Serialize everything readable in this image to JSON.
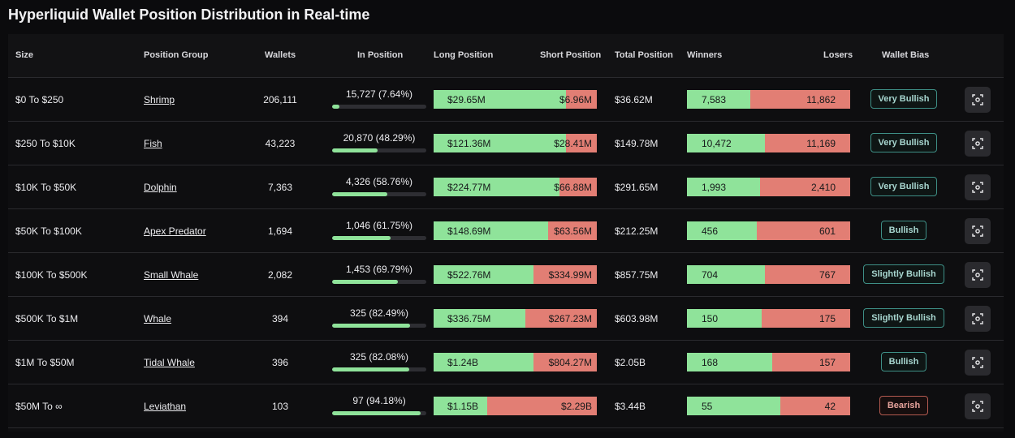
{
  "page": {
    "title": "Hyperliquid Wallet Position Distribution in Real-time"
  },
  "columns": {
    "size": "Size",
    "group": "Position Group",
    "wallets": "Wallets",
    "in_position": "In Position",
    "long": "Long Position",
    "short": "Short Position",
    "total": "Total Position",
    "winners": "Winners",
    "losers": "Losers",
    "bias": "Wallet Bias"
  },
  "colors": {
    "long": "#8fe39a",
    "short": "#e27e74",
    "accent": "#3e8f86",
    "bear": "#b45a50"
  },
  "rows": [
    {
      "size": "$0 To $250",
      "group": "Shrimp",
      "wallets": "206,111",
      "in_position": "15,727 (7.64%)",
      "in_pct": 7.64,
      "long": "$29.65M",
      "short": "$6.96M",
      "long_frac": 0.81,
      "total": "$36.62M",
      "winners": "7,583",
      "losers": "11,862",
      "win_frac": 0.39,
      "bias": "Very Bullish",
      "bias_kind": "bull",
      "action_icon": "scan-icon"
    },
    {
      "size": "$250 To $10K",
      "group": "Fish",
      "wallets": "43,223",
      "in_position": "20,870 (48.29%)",
      "in_pct": 48.29,
      "long": "$121.36M",
      "short": "$28.41M",
      "long_frac": 0.81,
      "total": "$149.78M",
      "winners": "10,472",
      "losers": "11,169",
      "win_frac": 0.48,
      "bias": "Very Bullish",
      "bias_kind": "bull",
      "action_icon": "scan-icon"
    },
    {
      "size": "$10K To $50K",
      "group": "Dolphin",
      "wallets": "7,363",
      "in_position": "4,326 (58.76%)",
      "in_pct": 58.76,
      "long": "$224.77M",
      "short": "$66.88M",
      "long_frac": 0.77,
      "total": "$291.65M",
      "winners": "1,993",
      "losers": "2,410",
      "win_frac": 0.45,
      "bias": "Very Bullish",
      "bias_kind": "bull",
      "action_icon": "scan-icon"
    },
    {
      "size": "$50K To $100K",
      "group": "Apex Predator",
      "wallets": "1,694",
      "in_position": "1,046 (61.75%)",
      "in_pct": 61.75,
      "long": "$148.69M",
      "short": "$63.56M",
      "long_frac": 0.7,
      "total": "$212.25M",
      "winners": "456",
      "losers": "601",
      "win_frac": 0.43,
      "bias": "Bullish",
      "bias_kind": "bull",
      "action_icon": "scan-icon"
    },
    {
      "size": "$100K To $500K",
      "group": "Small Whale",
      "wallets": "2,082",
      "in_position": "1,453 (69.79%)",
      "in_pct": 69.79,
      "long": "$522.76M",
      "short": "$334.99M",
      "long_frac": 0.61,
      "total": "$857.75M",
      "winners": "704",
      "losers": "767",
      "win_frac": 0.48,
      "bias": "Slightly Bullish",
      "bias_kind": "bull",
      "action_icon": "scan-icon"
    },
    {
      "size": "$500K To $1M",
      "group": "Whale",
      "wallets": "394",
      "in_position": "325 (82.49%)",
      "in_pct": 82.49,
      "long": "$336.75M",
      "short": "$267.23M",
      "long_frac": 0.56,
      "total": "$603.98M",
      "winners": "150",
      "losers": "175",
      "win_frac": 0.46,
      "bias": "Slightly Bullish",
      "bias_kind": "bull",
      "action_icon": "scan-icon"
    },
    {
      "size": "$1M To $50M",
      "group": "Tidal Whale",
      "wallets": "396",
      "in_position": "325 (82.08%)",
      "in_pct": 82.08,
      "long": "$1.24B",
      "short": "$804.27M",
      "long_frac": 0.61,
      "total": "$2.05B",
      "winners": "168",
      "losers": "157",
      "win_frac": 0.52,
      "bias": "Bullish",
      "bias_kind": "bull",
      "action_icon": "scan-icon"
    },
    {
      "size": "$50M To ∞",
      "group": "Leviathan",
      "wallets": "103",
      "in_position": "97 (94.18%)",
      "in_pct": 94.18,
      "long": "$1.15B",
      "short": "$2.29B",
      "long_frac": 0.33,
      "total": "$3.44B",
      "winners": "55",
      "losers": "42",
      "win_frac": 0.57,
      "bias": "Bearish",
      "bias_kind": "bear",
      "action_icon": "scan-icon"
    }
  ]
}
